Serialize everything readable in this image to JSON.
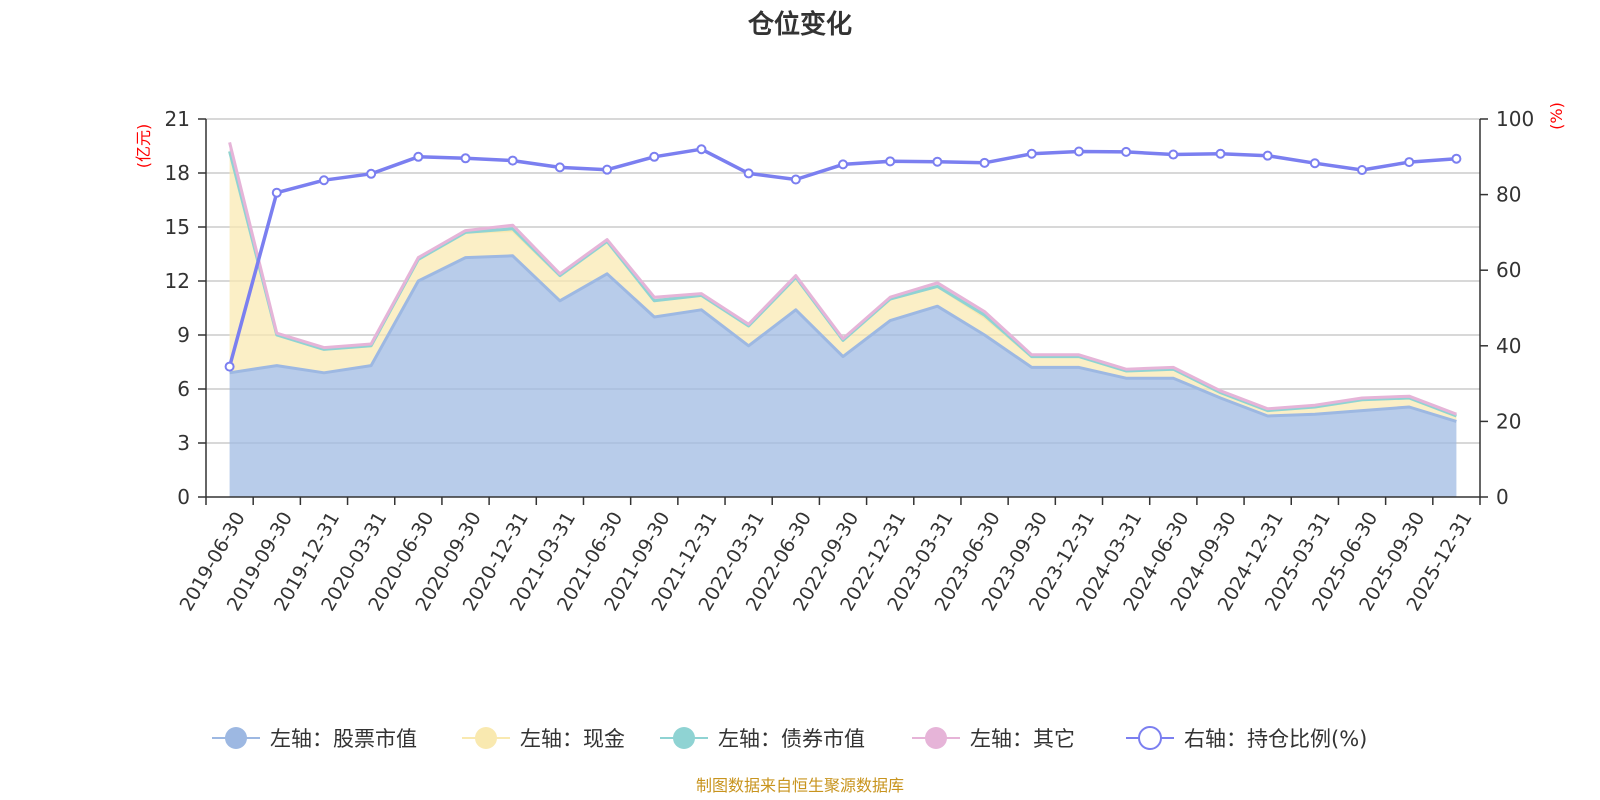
{
  "chart_data": {
    "type": "area",
    "title": "仓位变化",
    "source": "制图数据来自恒生聚源数据库",
    "left_axis": {
      "unit": "(亿元)",
      "range": [
        0,
        21
      ],
      "ticks": [
        "0",
        "3",
        "6",
        "9",
        "12",
        "15",
        "18",
        "21"
      ]
    },
    "right_axis": {
      "unit": "(%)",
      "range": [
        0,
        100
      ],
      "ticks": [
        "0",
        "20",
        "40",
        "60",
        "80",
        "100"
      ]
    },
    "grid": true,
    "legend_position": "bottom",
    "categories": [
      "2019-06-30",
      "2019-09-30",
      "2019-12-31",
      "2020-03-31",
      "2020-06-30",
      "2020-09-30",
      "2020-12-31",
      "2021-03-31",
      "2021-06-30",
      "2021-09-30",
      "2021-12-31",
      "2022-03-31",
      "2022-06-30",
      "2022-09-30",
      "2022-12-31",
      "2023-03-31",
      "2023-06-30",
      "2023-09-30",
      "2023-12-31",
      "2024-03-31",
      "2024-06-30",
      "2024-09-30",
      "2024-12-31",
      "2025-03-31",
      "2025-06-30",
      "2025-09-30",
      "2025-12-31"
    ],
    "series": [
      {
        "name": "左轴：股票市值",
        "axis": "left",
        "stack": true,
        "color": "#9db8e2",
        "values": [
          6.9,
          7.3,
          6.9,
          7.3,
          12.0,
          13.3,
          13.4,
          10.9,
          12.4,
          10.0,
          10.4,
          8.4,
          10.4,
          7.8,
          9.8,
          10.6,
          9.0,
          7.2,
          7.2,
          6.6,
          6.6,
          5.5,
          4.5,
          4.6,
          4.8,
          5.0,
          4.2
        ]
      },
      {
        "name": "左轴：现金",
        "axis": "left",
        "stack": true,
        "color": "#f9e9b0",
        "values": [
          12.3,
          1.7,
          1.3,
          1.1,
          1.2,
          1.4,
          1.4,
          1.4,
          1.8,
          0.9,
          0.8,
          1.1,
          1.8,
          0.9,
          1.2,
          1.1,
          1.0,
          0.6,
          0.6,
          0.4,
          0.5,
          0.3,
          0.3,
          0.4,
          0.6,
          0.5,
          0.3
        ]
      },
      {
        "name": "左轴：债券市值",
        "axis": "left",
        "stack": true,
        "color": "#8fd3d3",
        "values": [
          0.0,
          0.0,
          0.0,
          0.0,
          0.0,
          0.0,
          0.1,
          0.0,
          0.0,
          0.0,
          0.0,
          0.0,
          0.0,
          0.0,
          0.0,
          0.0,
          0.1,
          0.0,
          0.0,
          0.0,
          0.0,
          0.0,
          0.0,
          0.0,
          0.0,
          0.0,
          0.0
        ]
      },
      {
        "name": "左轴：其它",
        "axis": "left",
        "stack": true,
        "color": "#e6b4d8",
        "values": [
          0.5,
          0.1,
          0.1,
          0.1,
          0.1,
          0.1,
          0.2,
          0.1,
          0.1,
          0.2,
          0.1,
          0.1,
          0.1,
          0.1,
          0.1,
          0.2,
          0.2,
          0.1,
          0.1,
          0.1,
          0.1,
          0.1,
          0.1,
          0.1,
          0.1,
          0.1,
          0.1
        ]
      },
      {
        "name": "右轴：持仓比例(%)",
        "axis": "right",
        "type": "line",
        "color": "#7b7ff0",
        "values": [
          34.5,
          80.5,
          83.8,
          85.5,
          90.0,
          89.6,
          89.0,
          87.2,
          86.6,
          90.0,
          92.0,
          85.6,
          84.0,
          88.0,
          88.8,
          88.7,
          88.4,
          90.8,
          91.4,
          91.3,
          90.6,
          90.8,
          90.3,
          88.3,
          86.5,
          88.6,
          89.5
        ]
      }
    ]
  }
}
